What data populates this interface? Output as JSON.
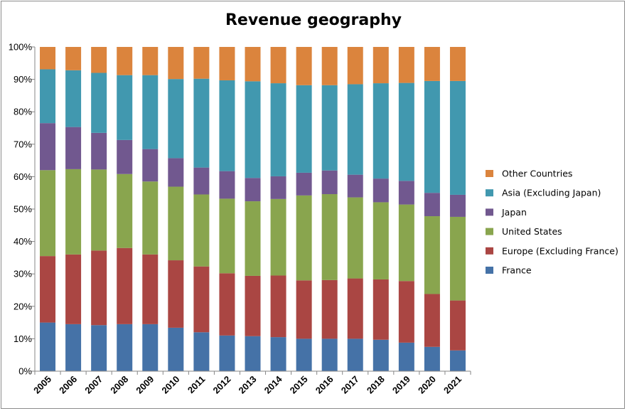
{
  "chart_data": {
    "type": "bar",
    "stacked": true,
    "percent": true,
    "title": "Revenue geography",
    "categories": [
      "2005",
      "2006",
      "2007",
      "2008",
      "2009",
      "2010",
      "2011",
      "2012",
      "2013",
      "2014",
      "2015",
      "2016",
      "2017",
      "2018",
      "2019",
      "2020",
      "2021"
    ],
    "ylim": [
      0,
      100
    ],
    "yticks": [
      "0%",
      "10%",
      "20%",
      "30%",
      "40%",
      "50%",
      "60%",
      "70%",
      "80%",
      "90%",
      "100%"
    ],
    "grid": false,
    "legend_position": "right",
    "series": [
      {
        "name": "France",
        "color": "#4572a7",
        "values": [
          15.0,
          14.5,
          14.2,
          14.5,
          14.5,
          13.4,
          12.0,
          11.0,
          10.8,
          10.5,
          10.0,
          10.0,
          10.0,
          9.7,
          8.8,
          7.5,
          6.4
        ]
      },
      {
        "name": "Europe (Excluding France)",
        "color": "#aa4643",
        "values": [
          20.5,
          21.5,
          23.0,
          23.5,
          21.5,
          20.8,
          20.3,
          19.2,
          18.6,
          19.0,
          18.0,
          18.1,
          18.6,
          18.6,
          19.0,
          16.3,
          15.4
        ]
      },
      {
        "name": "United States",
        "color": "#89a54e",
        "values": [
          26.5,
          26.3,
          25.0,
          22.8,
          22.5,
          22.7,
          22.2,
          23.0,
          23.0,
          23.6,
          26.2,
          26.5,
          25.0,
          23.8,
          23.6,
          24.0,
          25.8
        ]
      },
      {
        "name": "Japan",
        "color": "#71588f",
        "values": [
          14.5,
          13.0,
          11.3,
          10.5,
          10.0,
          8.8,
          8.3,
          8.5,
          7.2,
          7.0,
          7.0,
          7.3,
          7.0,
          7.3,
          7.3,
          7.2,
          6.8
        ]
      },
      {
        "name": "Asia (Excluding Japan)",
        "color": "#4198af",
        "values": [
          16.6,
          17.5,
          18.5,
          20.0,
          22.8,
          24.4,
          27.4,
          28.0,
          29.8,
          28.7,
          27.0,
          26.3,
          27.9,
          29.4,
          30.2,
          34.5,
          35.1
        ]
      },
      {
        "name": "Other Countries",
        "color": "#db843d",
        "values": [
          6.9,
          7.2,
          8.0,
          8.7,
          8.7,
          9.9,
          9.8,
          10.3,
          10.6,
          11.2,
          11.8,
          11.8,
          11.5,
          11.2,
          11.1,
          10.5,
          10.5
        ]
      }
    ]
  }
}
